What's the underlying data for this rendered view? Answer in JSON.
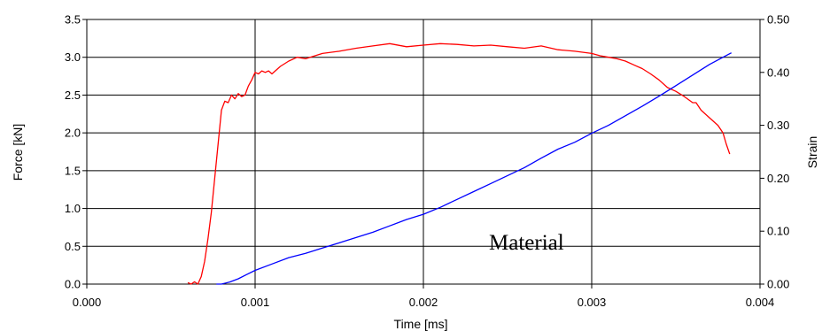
{
  "chart_data": {
    "type": "line",
    "title": "",
    "xlabel": "Time [ms]",
    "ylabel": "Force [kN]",
    "y2label": "Strain",
    "xlim": [
      0,
      0.004
    ],
    "ylim": [
      0,
      3.5
    ],
    "y2lim": [
      0,
      0.5
    ],
    "x_ticks": [
      "0.000",
      "0.001",
      "0.002",
      "0.003",
      "0.004"
    ],
    "y_ticks": [
      "0.0",
      "0.5",
      "1.0",
      "1.5",
      "2.0",
      "2.5",
      "3.0",
      "3.5"
    ],
    "y2_ticks": [
      "0.00",
      "0.10",
      "0.20",
      "0.30",
      "0.40",
      "0.50"
    ],
    "grid": true,
    "annotation": "Material",
    "series": [
      {
        "axis": "left",
        "color": "#ff0000",
        "x": [
          0.0006,
          0.00062,
          0.00064,
          0.00066,
          0.00068,
          0.0007,
          0.00072,
          0.00074,
          0.00076,
          0.00078,
          0.0008,
          0.00082,
          0.00084,
          0.00086,
          0.00088,
          0.0009,
          0.00092,
          0.00094,
          0.00096,
          0.00098,
          0.001,
          0.00102,
          0.00104,
          0.00106,
          0.00108,
          0.0011,
          0.00115,
          0.0012,
          0.00125,
          0.0013,
          0.0014,
          0.0015,
          0.0016,
          0.0017,
          0.0018,
          0.0019,
          0.002,
          0.0021,
          0.0022,
          0.0023,
          0.0024,
          0.0025,
          0.0026,
          0.0027,
          0.0028,
          0.0029,
          0.003,
          0.00305,
          0.0031,
          0.00315,
          0.0032,
          0.00325,
          0.0033,
          0.00335,
          0.0034,
          0.00345,
          0.0035,
          0.00355,
          0.0036,
          0.00362,
          0.00365,
          0.0037,
          0.00375,
          0.00378,
          0.0038,
          0.00382
        ],
        "y": [
          0.02,
          0.0,
          0.03,
          0.0,
          0.1,
          0.3,
          0.6,
          0.95,
          1.4,
          1.85,
          2.3,
          2.42,
          2.4,
          2.5,
          2.45,
          2.52,
          2.48,
          2.5,
          2.62,
          2.7,
          2.8,
          2.78,
          2.82,
          2.8,
          2.82,
          2.78,
          2.88,
          2.95,
          3.0,
          2.98,
          3.05,
          3.08,
          3.12,
          3.15,
          3.18,
          3.14,
          3.16,
          3.18,
          3.17,
          3.15,
          3.16,
          3.14,
          3.12,
          3.15,
          3.1,
          3.08,
          3.05,
          3.02,
          3.0,
          2.98,
          2.95,
          2.9,
          2.85,
          2.78,
          2.7,
          2.6,
          2.55,
          2.48,
          2.4,
          2.4,
          2.3,
          2.2,
          2.1,
          2.0,
          1.85,
          1.72
        ]
      },
      {
        "axis": "right",
        "color": "#0000ff",
        "x": [
          0.00077,
          0.0008,
          0.00085,
          0.0009,
          0.00095,
          0.001,
          0.0011,
          0.0012,
          0.0013,
          0.0014,
          0.0015,
          0.0016,
          0.0017,
          0.0018,
          0.0019,
          0.002,
          0.0021,
          0.0022,
          0.0023,
          0.0024,
          0.0025,
          0.0026,
          0.0027,
          0.0028,
          0.0029,
          0.003,
          0.0031,
          0.0032,
          0.0033,
          0.0034,
          0.0035,
          0.0036,
          0.0037,
          0.0038,
          0.00383
        ],
        "y": [
          0.0,
          0.0,
          0.004,
          0.01,
          0.018,
          0.026,
          0.038,
          0.05,
          0.058,
          0.068,
          0.078,
          0.088,
          0.098,
          0.11,
          0.122,
          0.132,
          0.145,
          0.16,
          0.175,
          0.19,
          0.205,
          0.22,
          0.238,
          0.255,
          0.268,
          0.285,
          0.3,
          0.318,
          0.336,
          0.355,
          0.375,
          0.395,
          0.415,
          0.432,
          0.437
        ]
      }
    ]
  }
}
